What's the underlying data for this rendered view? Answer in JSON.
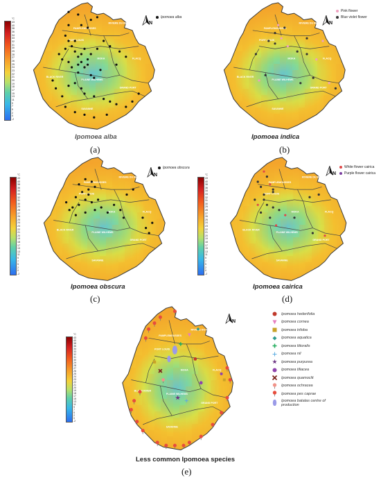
{
  "colors": {
    "map_orange": "#f4a52c",
    "map_yellow": "#f0d33c",
    "map_green": "#7ad07a",
    "map_cyan": "#58c8d8",
    "boundary": "#3a3a3a",
    "point_black": "#111111"
  },
  "colorbar": {
    "unit": "°C",
    "ticks": [
      "43",
      "40",
      "38",
      "36",
      "34",
      "33",
      "32",
      "31",
      "30",
      "29",
      "28",
      "27",
      "26",
      "25",
      "24",
      "23",
      "22",
      "21",
      "20",
      "19",
      "18",
      "17",
      "15",
      "13",
      "11",
      "9",
      "7",
      "5",
      "2",
      "0",
      "-2"
    ]
  },
  "region_labels": {
    "riviere": "RIVIERE DU REMPART",
    "pamplemousses": "PAMPLEMOUSSES",
    "port_louis": "PORT LOUIS",
    "moka": "MOKA",
    "flacq": "FLACQ",
    "black_river": "BLACK RIVER",
    "plaine_wilhems": "PLAINE WILHEMS",
    "grand_port": "GRAND PORT",
    "savanne": "SAVANNE"
  },
  "north_label": "N",
  "panels": {
    "a": {
      "caption": "(a)",
      "title": "Ipomoea alba",
      "legend": [
        "Ipomoea alba"
      ]
    },
    "b": {
      "caption": "(b)",
      "title": "Ipomoea indica",
      "legend": [
        "Pink flower",
        "Blue violet flower"
      ]
    },
    "c": {
      "caption": "(c)",
      "title": "Ipomoea obscura",
      "legend": [
        "Ipomoea obscura"
      ]
    },
    "d": {
      "caption": "(d)",
      "title": "Ipomoea cairica",
      "legend": [
        "White flower cairica",
        "Purple flower cairica"
      ]
    },
    "e": {
      "caption": "(e)",
      "title": "Less common Ipomoea species",
      "legend": [
        {
          "label": "Ipomoea hederifolia",
          "color": "#c0392b",
          "symbol": "circle"
        },
        {
          "label": "Ipomoea cornea",
          "color": "#e67fbf",
          "symbol": "triangle"
        },
        {
          "label": "Ipomoea triloba",
          "color": "#c9a227",
          "symbol": "square"
        },
        {
          "label": "Ipomoea aquatica",
          "color": "#2e9c8f",
          "symbol": "diamond"
        },
        {
          "label": "Ipomoea littoralis",
          "color": "#27ae60",
          "symbol": "plus"
        },
        {
          "label": "Ipomoea nil",
          "color": "#5dade2",
          "symbol": "cross"
        },
        {
          "label": "Ipomoea purpurea",
          "color": "#6c3483",
          "symbol": "star"
        },
        {
          "label": "Ipomoea tiliacea",
          "color": "#8e44ad",
          "symbol": "circle"
        },
        {
          "label": "Ipomoea quamoclit",
          "color": "#7b241c",
          "symbol": "x"
        },
        {
          "label": "Ipomoea ochracea",
          "color": "#f1948a",
          "symbol": "pin"
        },
        {
          "label": "Ipomoea pes caprae",
          "color": "#e74c3c",
          "symbol": "pin"
        },
        {
          "label": "Ipomoea batatas centre of production",
          "color": "#9b9be8",
          "symbol": "blob"
        }
      ]
    }
  }
}
